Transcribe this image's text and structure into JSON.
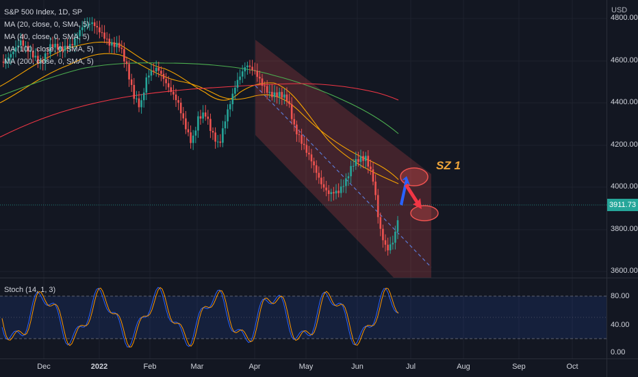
{
  "title_line": "S&P 500 Index, 1D, SP",
  "indicators": [
    {
      "label": "MA (20, close, 0, SMA, 5)",
      "color": "#f7a400"
    },
    {
      "label": "MA (40, close, 0, SMA, 5)",
      "color": "#f7a400"
    },
    {
      "label": "MA (100, close, 0, SMA, 5)",
      "color": "#4caf50"
    },
    {
      "label": "MA (200, close, 0, SMA, 5)",
      "color": "#f23645"
    }
  ],
  "stoch_label": "Stoch (14, 1, 3)",
  "annotation": "SZ 1",
  "currency": "USD",
  "last_price": "3911.73",
  "price_axis": [
    "4800.00",
    "4600.00",
    "4400.00",
    "4200.00",
    "4000.00",
    "3800.00",
    "3600.00"
  ],
  "stoch_axis": [
    "80.00",
    "40.00",
    "0.00"
  ],
  "time_axis": [
    {
      "label": "Dec",
      "bold": false
    },
    {
      "label": "2022",
      "bold": true
    },
    {
      "label": "Feb",
      "bold": false
    },
    {
      "label": "Mar",
      "bold": false
    },
    {
      "label": "Apr",
      "bold": false
    },
    {
      "label": "May",
      "bold": false
    },
    {
      "label": "Jun",
      "bold": false
    },
    {
      "label": "Jul",
      "bold": false
    },
    {
      "label": "Aug",
      "bold": false
    },
    {
      "label": "Sep",
      "bold": false
    },
    {
      "label": "Oct",
      "bold": false
    }
  ],
  "colors": {
    "background": "#131722",
    "up": "#26a69a",
    "down": "#ef5350",
    "channel": "#5c2a31",
    "stoch_k": "#2962ff",
    "stoch_d": "#ff9800"
  }
}
